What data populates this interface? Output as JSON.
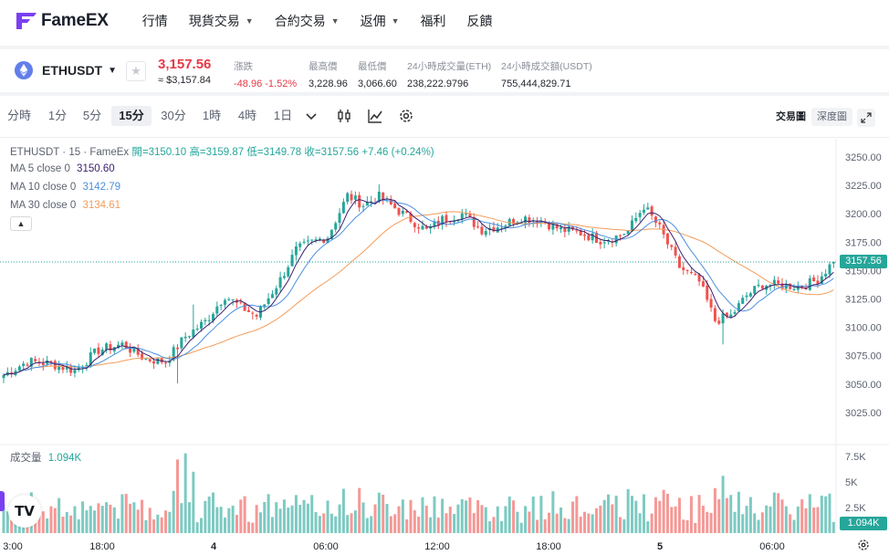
{
  "nav": {
    "brand": "FameEX",
    "items": [
      {
        "label": "行情",
        "caret": false
      },
      {
        "label": "現貨交易",
        "caret": true
      },
      {
        "label": "合約交易",
        "caret": true
      },
      {
        "label": "返佣",
        "caret": true
      },
      {
        "label": "福利",
        "caret": false
      },
      {
        "label": "反饋",
        "caret": false
      }
    ]
  },
  "ticker": {
    "pair": "ETHUSDT",
    "last_price": "3,157.56",
    "last_usd": "≈ $3,157.84",
    "change_label": "漲跌",
    "change_value": "-48.96",
    "change_pct": "-1.52%",
    "high_label": "最高價",
    "high_value": "3,228.96",
    "low_label": "最低價",
    "low_value": "3,066.60",
    "vol_eth_label": "24小時成交量(ETH)",
    "vol_eth_value": "238,222.9796",
    "vol_usdt_label": "24小時成交額(USDT)",
    "vol_usdt_value": "755,444,829.71"
  },
  "toolbar": {
    "intervals": [
      "分時",
      "1分",
      "5分",
      "15分",
      "30分",
      "1時",
      "4時",
      "1日"
    ],
    "active_interval": "15分",
    "views": [
      "交易圖",
      "深度圖"
    ],
    "active_view": "交易圖",
    "icons": [
      "chevron-down-icon",
      "candlestick-icon",
      "indicator-icon",
      "settings-icon",
      "expand-icon"
    ]
  },
  "legend": {
    "symbol": "ETHUSDT · 15 · FameEx",
    "open": "開=3150.10",
    "high": "高=3159.87",
    "low": "低=3149.78",
    "close": "收=3157.56",
    "change": "+7.46 (+0.24%)",
    "ma5_label": "MA 5 close 0",
    "ma5_value": "3150.60",
    "ma10_label": "MA 10 close 0",
    "ma10_value": "3142.79",
    "ma30_label": "MA 30 close 0",
    "ma30_value": "3134.61",
    "vol_label": "成交量",
    "vol_value": "1.094K",
    "current_price_tag": "3157.56",
    "current_vol_tag": "1.094K"
  },
  "colors": {
    "up": "#26a69a",
    "down": "#ef5350",
    "ma5": "#3c1f6e",
    "ma10": "#4a90e2",
    "ma30": "#f39c5a",
    "brand": "#7b3ff2"
  },
  "chart_data": {
    "type": "candlestick",
    "price_axis": {
      "ticks": [
        3250,
        3225,
        3200,
        3175,
        3150,
        3125,
        3100,
        3075,
        3050,
        3025
      ],
      "tick_labels": [
        "3250.00",
        "3225.00",
        "3200.00",
        "3175.00",
        "3150.00",
        "3125.00",
        "3100.00",
        "3075.00",
        "3050.00",
        "3025.00"
      ]
    },
    "volume_axis": {
      "ticks": [
        7500,
        5000,
        2500
      ],
      "tick_labels": [
        "7.5K",
        "5K",
        "2.5K"
      ]
    },
    "time_axis": {
      "labels": [
        "3:00",
        "18:00",
        "4",
        "06:00",
        "12:00",
        "18:00",
        "5",
        "06:00"
      ]
    },
    "current_price": 3157.56,
    "current_volume": 1094,
    "anchors": [
      [
        0,
        3058
      ],
      [
        6,
        3070
      ],
      [
        12,
        3068
      ],
      [
        18,
        3062
      ],
      [
        24,
        3080
      ],
      [
        30,
        3085
      ],
      [
        36,
        3072
      ],
      [
        41,
        3070
      ],
      [
        46,
        3092
      ],
      [
        51,
        3105
      ],
      [
        56,
        3128
      ],
      [
        60,
        3118
      ],
      [
        64,
        3110
      ],
      [
        70,
        3142
      ],
      [
        74,
        3168
      ],
      [
        78,
        3175
      ],
      [
        82,
        3180
      ],
      [
        87,
        3216
      ],
      [
        91,
        3208
      ],
      [
        95,
        3215
      ],
      [
        99,
        3205
      ],
      [
        103,
        3195
      ],
      [
        107,
        3185
      ],
      [
        111,
        3195
      ],
      [
        116,
        3200
      ],
      [
        121,
        3186
      ],
      [
        126,
        3190
      ],
      [
        131,
        3197
      ],
      [
        136,
        3194
      ],
      [
        141,
        3186
      ],
      [
        146,
        3183
      ],
      [
        151,
        3177
      ],
      [
        155,
        3180
      ],
      [
        158,
        3185
      ],
      [
        162,
        3207
      ],
      [
        166,
        3187
      ],
      [
        171,
        3153
      ],
      [
        176,
        3140
      ],
      [
        180,
        3106
      ],
      [
        184,
        3110
      ],
      [
        188,
        3128
      ],
      [
        192,
        3138
      ],
      [
        197,
        3137
      ],
      [
        202,
        3136
      ],
      [
        206,
        3142
      ],
      [
        210,
        3158
      ]
    ]
  }
}
